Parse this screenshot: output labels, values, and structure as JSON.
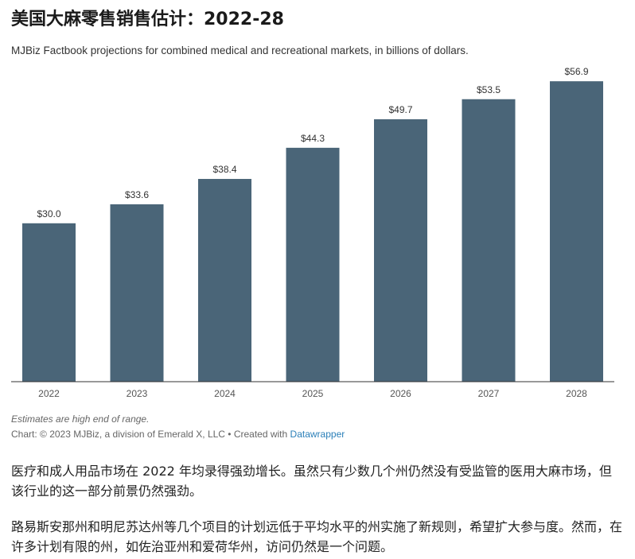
{
  "header": {
    "title": "美国大麻零售销售估计：2022-28",
    "subtitle": "MJBiz Factbook projections for combined medical and recreational markets, in billions of dollars."
  },
  "chart_data": {
    "type": "bar",
    "categories": [
      "2022",
      "2023",
      "2024",
      "2025",
      "2026",
      "2027",
      "2028"
    ],
    "values": [
      30.0,
      33.6,
      38.4,
      44.3,
      49.7,
      53.5,
      56.9
    ],
    "value_labels": [
      "$30.0",
      "$33.6",
      "$38.4",
      "$44.3",
      "$49.7",
      "$53.5",
      "$56.9"
    ],
    "title": "美国大麻零售销售估计：2022-28",
    "subtitle": "MJBiz Factbook projections for combined medical and recreational markets, in billions of dollars.",
    "ylim": [
      0,
      60
    ],
    "grid": false,
    "bar_color": "#4a6578"
  },
  "notes": {
    "note": "Estimates are high end of range.",
    "credit_prefix": "Chart: © 2023 MJBiz, a division of Emerald X, LLC • Created with ",
    "credit_link": "Datawrapper"
  },
  "article": {
    "p1": "医疗和成人用品市场在 2022 年均录得强劲增长。虽然只有少数几个州仍然没有受监管的医用大麻市场，但该行业的这一部分前景仍然强劲。",
    "p2": "路易斯安那州和明尼苏达州等几个项目的计划远低于平均水平的州实施了新规则，希望扩大参与度。然而，在许多计划有限的州，如佐治亚州和爱荷华州，访问仍然是一个问题。"
  }
}
